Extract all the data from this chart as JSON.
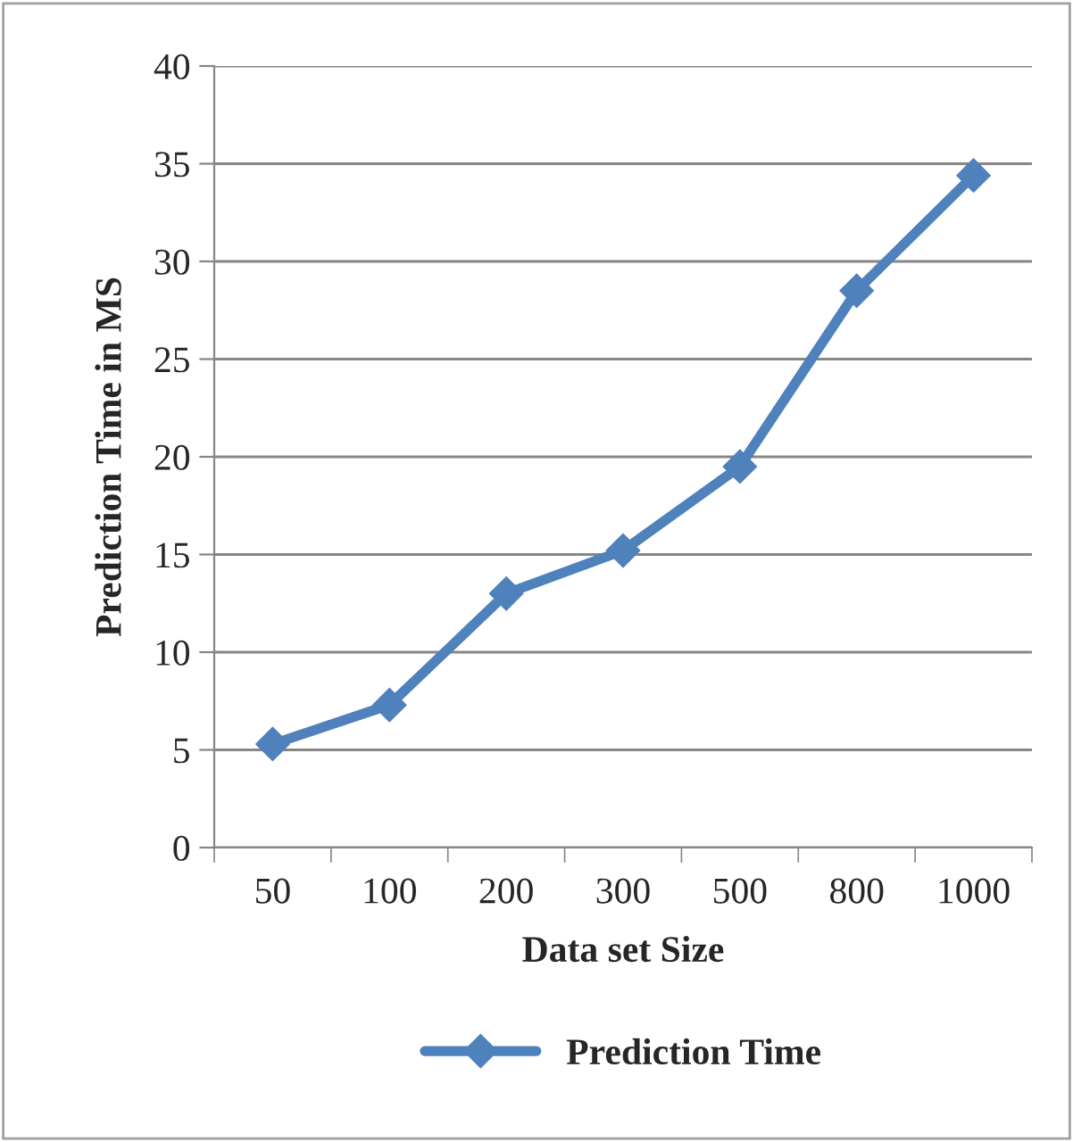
{
  "chart_data": {
    "type": "line",
    "xlabel": "Data set Size",
    "ylabel": "Prediction Time in MS",
    "categories": [
      "50",
      "100",
      "200",
      "300",
      "500",
      "800",
      "1000"
    ],
    "series": [
      {
        "name": "Prediction Time",
        "color": "#4f81bd",
        "values": [
          5.3,
          7.3,
          13,
          15.2,
          19.5,
          28.5,
          34.4
        ]
      }
    ],
    "ylim": [
      0,
      40
    ],
    "yticks": [
      0,
      5,
      10,
      15,
      20,
      25,
      30,
      35,
      40
    ],
    "grid": "y",
    "legend": "bottom",
    "marker": "diamond",
    "line_style": "solid"
  }
}
